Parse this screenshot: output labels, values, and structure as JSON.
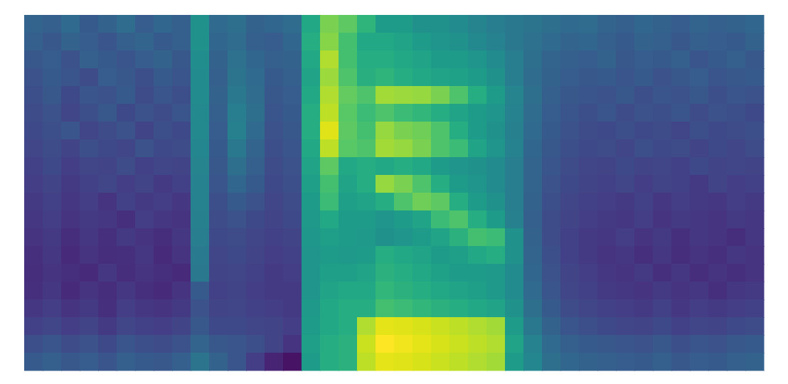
{
  "chart_data": {
    "type": "heatmap",
    "color": "viridis",
    "tick_labels": false,
    "zlim": [
      0,
      1
    ],
    "cells": [
      [
        0.32,
        0.3,
        0.34,
        0.28,
        0.31,
        0.35,
        0.29,
        0.33,
        0.3,
        0.5,
        0.34,
        0.36,
        0.31,
        0.33,
        0.35,
        0.6,
        0.8,
        0.75,
        0.65,
        0.55,
        0.55,
        0.5,
        0.5,
        0.48,
        0.45,
        0.42,
        0.4,
        0.38,
        0.36,
        0.34,
        0.35,
        0.32,
        0.3,
        0.33,
        0.31,
        0.29,
        0.32,
        0.3,
        0.31,
        0.33
      ],
      [
        0.3,
        0.27,
        0.31,
        0.29,
        0.26,
        0.3,
        0.32,
        0.28,
        0.3,
        0.5,
        0.33,
        0.35,
        0.3,
        0.29,
        0.33,
        0.62,
        0.82,
        0.7,
        0.6,
        0.6,
        0.58,
        0.55,
        0.52,
        0.5,
        0.47,
        0.44,
        0.4,
        0.37,
        0.34,
        0.32,
        0.33,
        0.3,
        0.28,
        0.31,
        0.3,
        0.27,
        0.3,
        0.29,
        0.28,
        0.31
      ],
      [
        0.27,
        0.29,
        0.25,
        0.3,
        0.28,
        0.26,
        0.29,
        0.31,
        0.27,
        0.49,
        0.31,
        0.37,
        0.33,
        0.3,
        0.31,
        0.6,
        0.88,
        0.7,
        0.62,
        0.62,
        0.6,
        0.58,
        0.55,
        0.55,
        0.52,
        0.48,
        0.42,
        0.36,
        0.32,
        0.3,
        0.29,
        0.31,
        0.27,
        0.29,
        0.28,
        0.3,
        0.26,
        0.28,
        0.3,
        0.27
      ],
      [
        0.25,
        0.28,
        0.26,
        0.23,
        0.29,
        0.27,
        0.24,
        0.28,
        0.26,
        0.48,
        0.3,
        0.38,
        0.34,
        0.28,
        0.3,
        0.58,
        0.85,
        0.72,
        0.63,
        0.65,
        0.62,
        0.6,
        0.58,
        0.57,
        0.55,
        0.5,
        0.42,
        0.35,
        0.31,
        0.29,
        0.27,
        0.28,
        0.26,
        0.28,
        0.25,
        0.27,
        0.29,
        0.26,
        0.27,
        0.28
      ],
      [
        0.24,
        0.27,
        0.22,
        0.26,
        0.25,
        0.28,
        0.23,
        0.26,
        0.24,
        0.48,
        0.31,
        0.4,
        0.35,
        0.27,
        0.29,
        0.6,
        0.88,
        0.76,
        0.72,
        0.86,
        0.85,
        0.84,
        0.8,
        0.72,
        0.62,
        0.55,
        0.45,
        0.36,
        0.3,
        0.27,
        0.26,
        0.25,
        0.27,
        0.24,
        0.26,
        0.25,
        0.27,
        0.24,
        0.26,
        0.25
      ],
      [
        0.23,
        0.25,
        0.21,
        0.24,
        0.27,
        0.22,
        0.25,
        0.23,
        0.26,
        0.47,
        0.3,
        0.42,
        0.36,
        0.26,
        0.28,
        0.62,
        0.9,
        0.74,
        0.68,
        0.72,
        0.68,
        0.66,
        0.62,
        0.58,
        0.55,
        0.52,
        0.44,
        0.35,
        0.29,
        0.26,
        0.24,
        0.26,
        0.23,
        0.25,
        0.24,
        0.26,
        0.23,
        0.25,
        0.24,
        0.22
      ],
      [
        0.22,
        0.24,
        0.26,
        0.21,
        0.23,
        0.25,
        0.2,
        0.24,
        0.22,
        0.47,
        0.29,
        0.43,
        0.34,
        0.25,
        0.27,
        0.62,
        0.95,
        0.75,
        0.7,
        0.84,
        0.8,
        0.78,
        0.72,
        0.62,
        0.55,
        0.5,
        0.43,
        0.34,
        0.28,
        0.25,
        0.23,
        0.22,
        0.24,
        0.22,
        0.23,
        0.21,
        0.24,
        0.22,
        0.23,
        0.24
      ],
      [
        0.21,
        0.23,
        0.2,
        0.24,
        0.22,
        0.21,
        0.25,
        0.22,
        0.23,
        0.46,
        0.28,
        0.4,
        0.32,
        0.24,
        0.26,
        0.6,
        0.9,
        0.74,
        0.72,
        0.86,
        0.84,
        0.8,
        0.72,
        0.68,
        0.58,
        0.52,
        0.44,
        0.33,
        0.27,
        0.24,
        0.22,
        0.23,
        0.21,
        0.24,
        0.22,
        0.23,
        0.2,
        0.22,
        0.21,
        0.23
      ],
      [
        0.19,
        0.22,
        0.18,
        0.21,
        0.2,
        0.23,
        0.19,
        0.21,
        0.2,
        0.45,
        0.27,
        0.36,
        0.3,
        0.23,
        0.25,
        0.58,
        0.75,
        0.6,
        0.62,
        0.6,
        0.62,
        0.6,
        0.55,
        0.52,
        0.5,
        0.48,
        0.42,
        0.32,
        0.26,
        0.23,
        0.21,
        0.2,
        0.22,
        0.2,
        0.21,
        0.19,
        0.22,
        0.2,
        0.21,
        0.2
      ],
      [
        0.18,
        0.2,
        0.17,
        0.19,
        0.21,
        0.18,
        0.2,
        0.17,
        0.19,
        0.44,
        0.26,
        0.33,
        0.28,
        0.22,
        0.24,
        0.56,
        0.7,
        0.58,
        0.62,
        0.84,
        0.8,
        0.72,
        0.62,
        0.55,
        0.52,
        0.48,
        0.42,
        0.32,
        0.25,
        0.22,
        0.2,
        0.19,
        0.21,
        0.18,
        0.2,
        0.19,
        0.17,
        0.2,
        0.18,
        0.19
      ],
      [
        0.17,
        0.19,
        0.16,
        0.18,
        0.15,
        0.19,
        0.17,
        0.18,
        0.16,
        0.44,
        0.24,
        0.28,
        0.25,
        0.21,
        0.23,
        0.55,
        0.68,
        0.56,
        0.58,
        0.62,
        0.72,
        0.78,
        0.75,
        0.62,
        0.55,
        0.5,
        0.42,
        0.31,
        0.24,
        0.21,
        0.19,
        0.18,
        0.17,
        0.19,
        0.16,
        0.18,
        0.17,
        0.16,
        0.18,
        0.17
      ],
      [
        0.16,
        0.18,
        0.15,
        0.17,
        0.16,
        0.14,
        0.18,
        0.16,
        0.15,
        0.43,
        0.23,
        0.25,
        0.22,
        0.2,
        0.22,
        0.54,
        0.6,
        0.55,
        0.55,
        0.52,
        0.55,
        0.58,
        0.68,
        0.72,
        0.62,
        0.55,
        0.43,
        0.3,
        0.23,
        0.2,
        0.18,
        0.17,
        0.16,
        0.18,
        0.15,
        0.17,
        0.16,
        0.15,
        0.17,
        0.16
      ],
      [
        0.15,
        0.17,
        0.13,
        0.16,
        0.14,
        0.17,
        0.15,
        0.13,
        0.16,
        0.42,
        0.22,
        0.23,
        0.21,
        0.19,
        0.2,
        0.53,
        0.56,
        0.55,
        0.54,
        0.5,
        0.52,
        0.55,
        0.58,
        0.64,
        0.7,
        0.68,
        0.5,
        0.31,
        0.23,
        0.19,
        0.17,
        0.16,
        0.18,
        0.15,
        0.17,
        0.14,
        0.16,
        0.15,
        0.13,
        0.16
      ],
      [
        0.14,
        0.16,
        0.12,
        0.15,
        0.13,
        0.14,
        0.16,
        0.12,
        0.15,
        0.41,
        0.21,
        0.22,
        0.2,
        0.18,
        0.19,
        0.52,
        0.55,
        0.54,
        0.55,
        0.62,
        0.6,
        0.58,
        0.55,
        0.56,
        0.6,
        0.62,
        0.5,
        0.32,
        0.24,
        0.19,
        0.17,
        0.15,
        0.16,
        0.14,
        0.16,
        0.13,
        0.15,
        0.14,
        0.16,
        0.15
      ],
      [
        0.13,
        0.15,
        0.14,
        0.12,
        0.16,
        0.13,
        0.15,
        0.14,
        0.12,
        0.4,
        0.2,
        0.21,
        0.19,
        0.17,
        0.18,
        0.52,
        0.56,
        0.56,
        0.58,
        0.64,
        0.62,
        0.6,
        0.57,
        0.55,
        0.55,
        0.54,
        0.48,
        0.33,
        0.25,
        0.2,
        0.18,
        0.16,
        0.15,
        0.17,
        0.14,
        0.16,
        0.13,
        0.15,
        0.14,
        0.15
      ],
      [
        0.14,
        0.16,
        0.12,
        0.15,
        0.13,
        0.16,
        0.14,
        0.12,
        0.15,
        0.28,
        0.19,
        0.2,
        0.18,
        0.17,
        0.17,
        0.52,
        0.58,
        0.6,
        0.6,
        0.66,
        0.64,
        0.62,
        0.6,
        0.58,
        0.56,
        0.54,
        0.48,
        0.34,
        0.26,
        0.21,
        0.19,
        0.17,
        0.16,
        0.15,
        0.17,
        0.15,
        0.16,
        0.14,
        0.16,
        0.17
      ],
      [
        0.16,
        0.18,
        0.15,
        0.17,
        0.14,
        0.18,
        0.16,
        0.15,
        0.17,
        0.25,
        0.2,
        0.21,
        0.19,
        0.18,
        0.17,
        0.54,
        0.6,
        0.62,
        0.62,
        0.7,
        0.68,
        0.66,
        0.64,
        0.62,
        0.6,
        0.58,
        0.5,
        0.36,
        0.28,
        0.23,
        0.21,
        0.19,
        0.18,
        0.17,
        0.19,
        0.16,
        0.18,
        0.17,
        0.18,
        0.19
      ],
      [
        0.19,
        0.21,
        0.18,
        0.2,
        0.17,
        0.21,
        0.19,
        0.18,
        0.2,
        0.27,
        0.22,
        0.22,
        0.21,
        0.2,
        0.18,
        0.55,
        0.6,
        0.62,
        0.88,
        0.96,
        0.95,
        0.94,
        0.92,
        0.9,
        0.88,
        0.86,
        0.55,
        0.4,
        0.31,
        0.26,
        0.24,
        0.22,
        0.21,
        0.2,
        0.22,
        0.19,
        0.21,
        0.2,
        0.22,
        0.23
      ],
      [
        0.24,
        0.26,
        0.23,
        0.25,
        0.22,
        0.26,
        0.24,
        0.23,
        0.25,
        0.32,
        0.27,
        0.26,
        0.24,
        0.2,
        0.15,
        0.56,
        0.62,
        0.64,
        0.92,
        1.0,
        0.98,
        0.96,
        0.94,
        0.92,
        0.9,
        0.88,
        0.58,
        0.44,
        0.34,
        0.3,
        0.28,
        0.27,
        0.26,
        0.25,
        0.27,
        0.24,
        0.26,
        0.25,
        0.27,
        0.28
      ],
      [
        0.28,
        0.3,
        0.27,
        0.29,
        0.26,
        0.3,
        0.28,
        0.27,
        0.3,
        0.38,
        0.31,
        0.26,
        0.18,
        0.1,
        0.05,
        0.55,
        0.62,
        0.64,
        0.9,
        0.96,
        0.95,
        0.94,
        0.92,
        0.9,
        0.88,
        0.86,
        0.55,
        0.46,
        0.36,
        0.33,
        0.31,
        0.3,
        0.29,
        0.28,
        0.3,
        0.27,
        0.29,
        0.28,
        0.3,
        0.31
      ]
    ]
  }
}
